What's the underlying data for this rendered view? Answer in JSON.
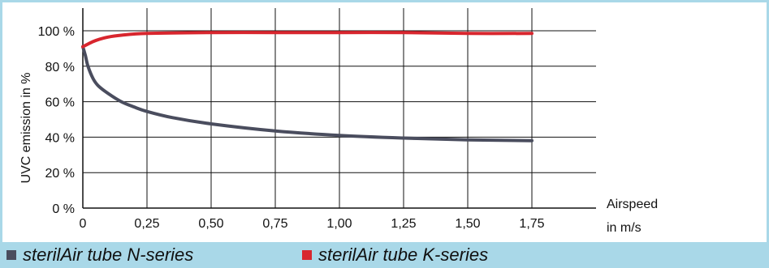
{
  "chart_data": {
    "type": "line",
    "title": "",
    "ylabel": "UVC emission in %",
    "xlabel_line1": "Airspeed",
    "xlabel_line2": "in m/s",
    "xlim": [
      0,
      2.0
    ],
    "ylim": [
      0,
      100
    ],
    "grid": true,
    "xticks": [
      0,
      0.25,
      0.5,
      0.75,
      1.0,
      1.25,
      1.5,
      1.75
    ],
    "xtick_labels": [
      "0",
      "0,25",
      "0,50",
      "0,75",
      "1,00",
      "1,25",
      "1,50",
      "1,75"
    ],
    "yticks": [
      0,
      20,
      40,
      60,
      80,
      100
    ],
    "ytick_labels": [
      "0 %",
      "20 %",
      "40 %",
      "60 %",
      "80 %",
      "100 %"
    ],
    "series": [
      {
        "name": "sterilAir tube N-series",
        "color": "#4a4d5e",
        "x": [
          0,
          0.01,
          0.02,
          0.04,
          0.06,
          0.1,
          0.15,
          0.2,
          0.25,
          0.35,
          0.5,
          0.75,
          1.0,
          1.25,
          1.5,
          1.75
        ],
        "y": [
          91,
          86,
          80,
          73,
          69,
          64.5,
          60,
          57,
          54.5,
          51,
          47.5,
          43.5,
          41,
          39.5,
          38.5,
          38
        ]
      },
      {
        "name": "sterilAir tube K-series",
        "color": "#d8262e",
        "x": [
          0,
          0.02,
          0.05,
          0.1,
          0.15,
          0.25,
          0.5,
          0.75,
          1.0,
          1.25,
          1.5,
          1.75
        ],
        "y": [
          91,
          92.5,
          94.5,
          96.5,
          97.5,
          98.5,
          99,
          99,
          99,
          99,
          98.5,
          98.5
        ]
      }
    ]
  }
}
